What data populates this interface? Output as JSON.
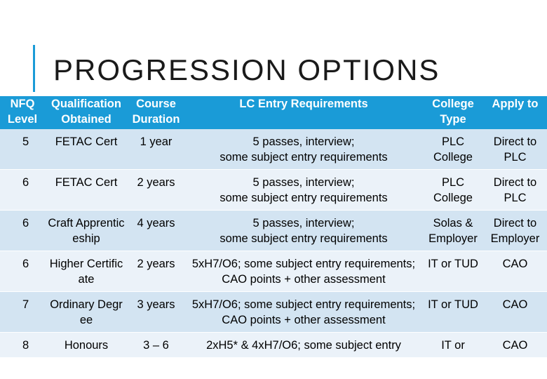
{
  "title": "PROGRESSION OPTIONS",
  "colors": {
    "accent": "#1a9bd7",
    "row_dark": "#d3e4f2",
    "row_light": "#ebf2f9"
  },
  "table": {
    "headers": [
      "NFQ Level",
      "Qualification Obtained",
      "Course Duration",
      "LC Entry Requirements",
      "College Type",
      "Apply to"
    ],
    "rows": [
      {
        "nfq": "5",
        "qualification": "FETAC Cert",
        "duration": "1 year",
        "requirements": "5 passes, interview;\nsome subject entry requirements",
        "college": "PLC College",
        "apply": "Direct to PLC"
      },
      {
        "nfq": "6",
        "qualification": "FETAC Cert",
        "duration": "2 years",
        "requirements": "5 passes, interview;\nsome subject entry requirements",
        "college": "PLC College",
        "apply": "Direct to PLC"
      },
      {
        "nfq": "6",
        "qualification": "Craft Apprenticeship",
        "duration": "4 years",
        "requirements": "5 passes, interview;\nsome subject entry requirements",
        "college": "Solas & Employer",
        "apply": "Direct to Employer"
      },
      {
        "nfq": "6",
        "qualification": "Higher Certificate",
        "duration": "2 years",
        "requirements": "5xH7/O6; some subject entry requirements;\nCAO points + other assessment",
        "college": "IT or TUD",
        "apply": "CAO"
      },
      {
        "nfq": "7",
        "qualification": "Ordinary Degree",
        "duration": "3 years",
        "requirements": "5xH7/O6; some subject entry requirements;\nCAO points + other assessment",
        "college": "IT or TUD",
        "apply": "CAO"
      },
      {
        "nfq": "8",
        "qualification": "Honours",
        "duration": "3 – 6",
        "requirements": "2xH5* & 4xH7/O6; some subject entry",
        "college": "IT or",
        "apply": "CAO"
      }
    ]
  }
}
